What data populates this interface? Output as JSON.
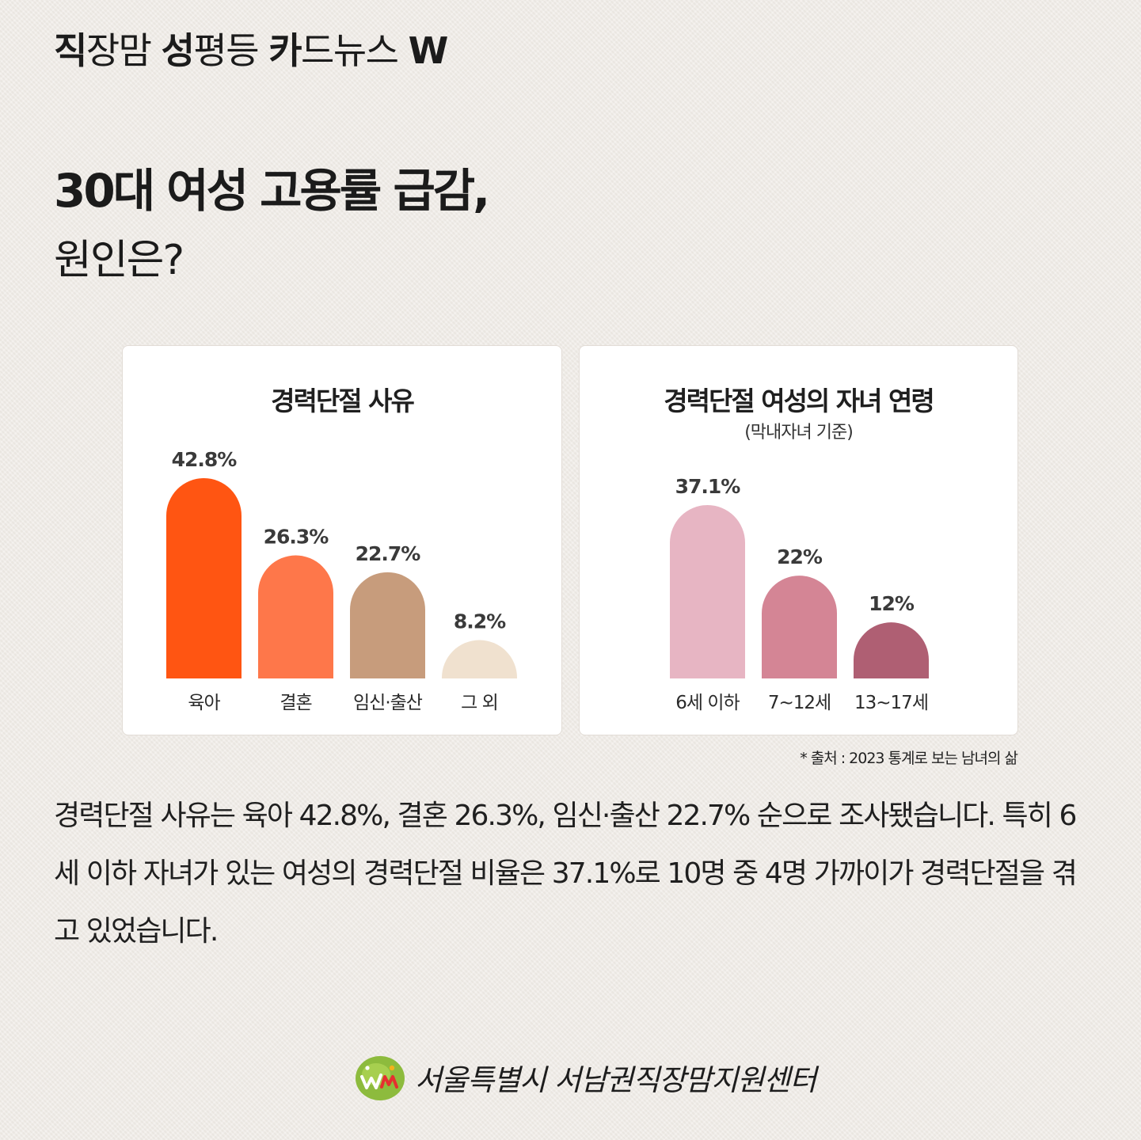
{
  "header": {
    "words": [
      {
        "bold": "직",
        "light": "장맘 "
      },
      {
        "bold": "성",
        "light": "평등 "
      },
      {
        "bold": "카",
        "light": "드뉴스 "
      },
      {
        "bold": "W",
        "light": ""
      }
    ]
  },
  "title": {
    "line1": "30대 여성 고용률 급감,",
    "line2": "원인은?"
  },
  "colors": {
    "background": "#efebe6",
    "card": "#ffffff"
  },
  "chart_data": [
    {
      "type": "bar",
      "title": "경력단절 사유",
      "subtitle": "",
      "categories": [
        "육아",
        "결혼",
        "임신·출산",
        "그 외"
      ],
      "values": [
        42.8,
        26.3,
        22.7,
        8.2
      ],
      "value_labels": [
        "42.8%",
        "26.3%",
        "22.7%",
        "8.2%"
      ],
      "colors": [
        "#ff5512",
        "#fe774a",
        "#c79c7c",
        "#f0e1cf"
      ],
      "ylim": [
        0,
        42.8
      ],
      "grid": false,
      "bar_style": "rounded-top"
    },
    {
      "type": "bar",
      "title": "경력단절 여성의 자녀 연령",
      "subtitle": "(막내자녀 기준)",
      "categories": [
        "6세 이하",
        "7~12세",
        "13~17세"
      ],
      "values": [
        37.1,
        22,
        12
      ],
      "value_labels": [
        "37.1%",
        "22%",
        "12%"
      ],
      "colors": [
        "#e7b5c3",
        "#d48595",
        "#af5f73"
      ],
      "ylim": [
        0,
        37.1
      ],
      "grid": false,
      "bar_style": "rounded-top"
    }
  ],
  "source": "*  출처 : 2023 통계로 보는 남녀의 삶",
  "body": "경력단절 사유는 육아 42.8%, 결혼 26.3%, 임신·출산 22.7% 순으로 조사됐습니다. 특히 6세 이하 자녀가 있는 여성의 경력단절 비율은 37.1%로 10명 중 4명 가까이가 경력단절을 겪고 있었습니다.",
  "footer": {
    "org": "서울특별시 서남권직장맘지원센터",
    "logo_icon": "wm-logo-icon",
    "logo_color": "#8dbb3d"
  }
}
